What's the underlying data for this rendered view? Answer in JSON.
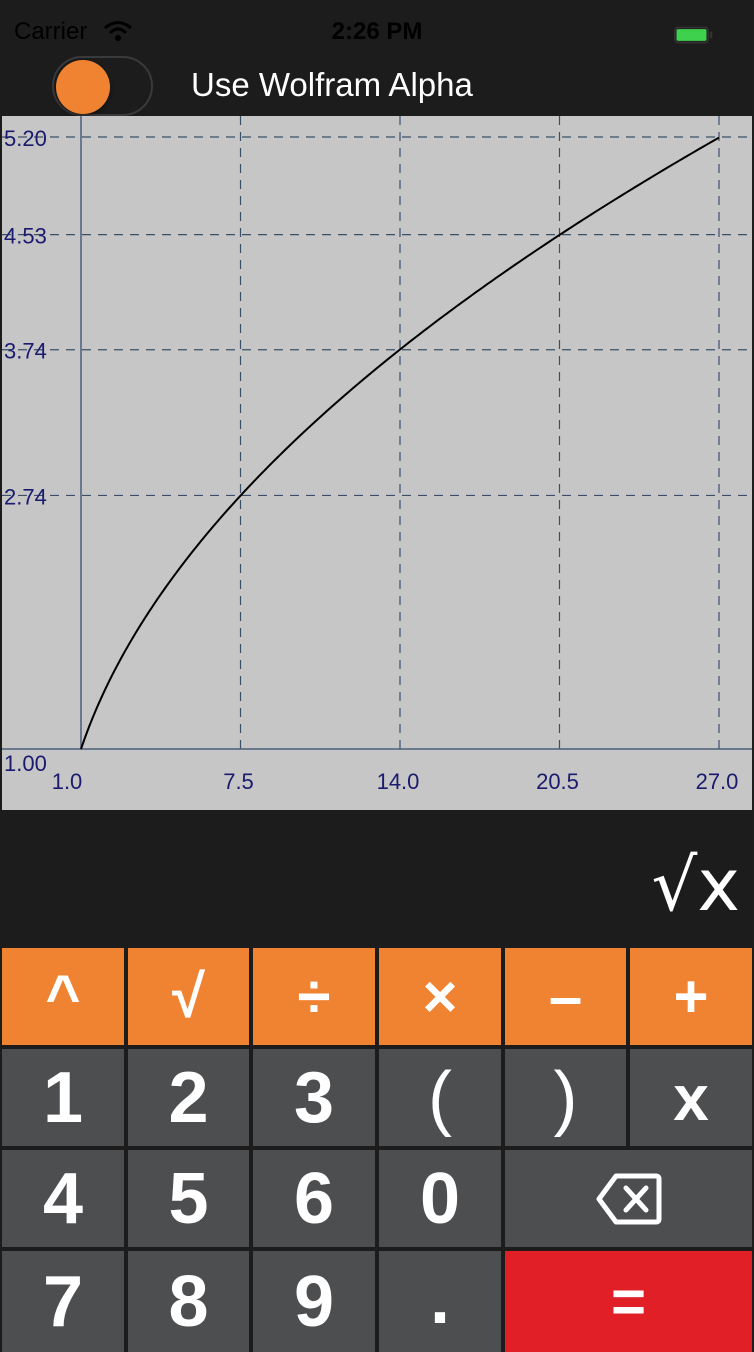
{
  "status": {
    "carrier": "Carrier",
    "time": "2:26 PM"
  },
  "toggle": {
    "label": "Use Wolfram Alpha",
    "on": true,
    "color": "#f08332"
  },
  "graph": {
    "y_tick_labels": [
      "5.20",
      "4.53",
      "3.74",
      "2.74",
      "1.00"
    ],
    "x_tick_labels": [
      "1.0",
      "7.5",
      "14.0",
      "20.5",
      "27.0"
    ]
  },
  "chart_data": {
    "type": "line",
    "function": "√x",
    "x": [
      1,
      2,
      4,
      7.5,
      10,
      14,
      18,
      20.5,
      24,
      27
    ],
    "y": [
      1.0,
      1.41,
      2.0,
      2.74,
      3.16,
      3.74,
      4.24,
      4.53,
      4.9,
      5.2
    ],
    "xlim": [
      1.0,
      27.0
    ],
    "ylim": [
      1.0,
      5.2
    ],
    "x_ticks": [
      1.0,
      7.5,
      14.0,
      20.5,
      27.0
    ],
    "y_ticks": [
      1.0,
      2.74,
      3.74,
      4.53,
      5.2
    ],
    "grid": true,
    "grid_style": "dashed",
    "title": "",
    "xlabel": "",
    "ylabel": ""
  },
  "expression": "√x",
  "keys": {
    "row1": [
      "^",
      "√",
      "÷",
      "×",
      "–",
      "+"
    ],
    "row2": [
      "1",
      "2",
      "3",
      "(",
      ")",
      "x"
    ],
    "row3": [
      "4",
      "5",
      "6",
      "0"
    ],
    "row4": [
      "7",
      "8",
      "9",
      "."
    ],
    "equals": "="
  },
  "colors": {
    "operator": "#f08332",
    "number": "#4d4e50",
    "equals": "#e02026",
    "background": "#1c1c1c",
    "graph_bg": "#c6c6c6"
  }
}
